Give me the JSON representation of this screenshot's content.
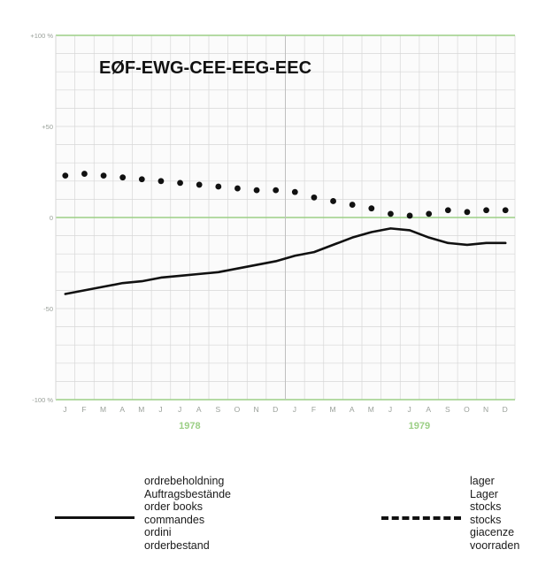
{
  "chart_data": {
    "type": "line",
    "title": "EØF-EWG-CEE-EEG-EEC",
    "ylim": [
      -100,
      100
    ],
    "y_ticks": [
      {
        "value": 100,
        "label": "+100 %"
      },
      {
        "value": 50,
        "label": "+50"
      },
      {
        "value": 0,
        "label": "0"
      },
      {
        "value": -50,
        "label": "-50"
      },
      {
        "value": -100,
        "label": "-100 %"
      }
    ],
    "month_labels": [
      "J",
      "F",
      "M",
      "A",
      "M",
      "J",
      "J",
      "A",
      "S",
      "O",
      "N",
      "D",
      "J",
      "F",
      "M",
      "A",
      "M",
      "J",
      "J",
      "A",
      "S",
      "O",
      "N",
      "D"
    ],
    "year_labels": [
      {
        "label": "1978",
        "month_index": 6.5
      },
      {
        "label": "1979",
        "month_index": 18.5
      }
    ],
    "grid": true,
    "series": [
      {
        "name": "",
        "style": "solid",
        "x": [
          0,
          1,
          2,
          3,
          4,
          5,
          6,
          7,
          8,
          9,
          10,
          11,
          12,
          13,
          14,
          15,
          16,
          17,
          18,
          19,
          20,
          21,
          22,
          23
        ],
        "values": [
          -42,
          -40,
          -38,
          -36,
          -35,
          -33,
          -32,
          -31,
          -30,
          -28,
          -26,
          -24,
          -21,
          -19,
          -15,
          -11,
          -8,
          -6,
          -7,
          -11,
          -14,
          -15,
          -14,
          -14
        ]
      },
      {
        "name": "",
        "style": "dotted",
        "x": [
          0,
          1,
          2,
          3,
          4,
          5,
          6,
          7,
          8,
          9,
          10,
          11,
          12,
          13,
          14,
          15,
          16,
          17,
          18,
          19,
          20,
          21,
          22,
          23
        ],
        "values": [
          23,
          24,
          23,
          22,
          21,
          20,
          19,
          18,
          17,
          16,
          15,
          15,
          14,
          11,
          9,
          7,
          5,
          2,
          1,
          2,
          4,
          3,
          4,
          4
        ]
      }
    ],
    "colors": {
      "axis_green": "#9ccf86",
      "line": "#111111",
      "grid": "#d7d7d7",
      "ticks": "#9aa09a"
    }
  },
  "legend": {
    "orders": [
      "ordrebeholdning",
      "Auftragsbestände",
      "order books",
      "commandes",
      "ordini",
      "orderbestand"
    ],
    "stocks": [
      "lager",
      "Lager",
      "stocks",
      "stocks",
      "giacenze",
      "voorraden"
    ]
  }
}
